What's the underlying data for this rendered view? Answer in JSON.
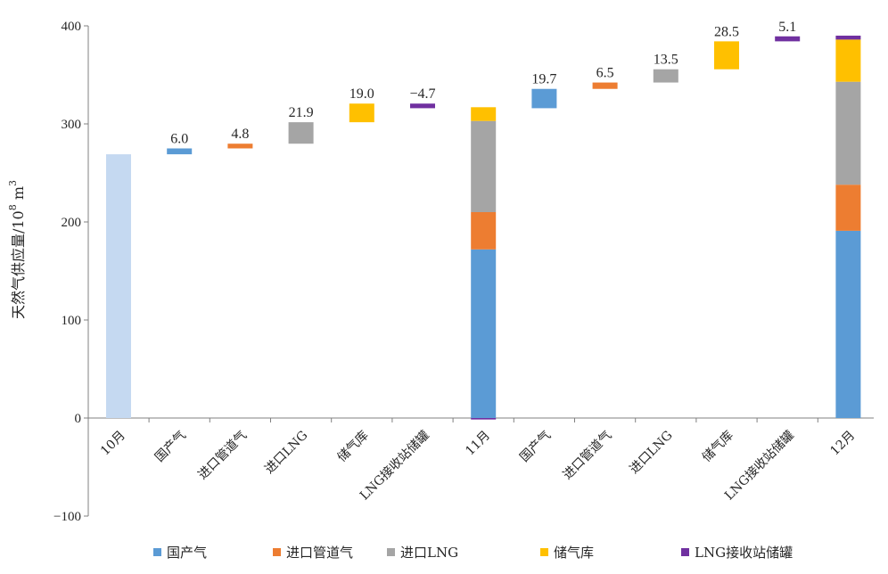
{
  "chart_data": {
    "type": "bar",
    "subtype": "waterfall-stacked",
    "ylabel": "天然气供应量/10⁸ m³",
    "ylabel_main": "天然气供应量/10",
    "ylabel_sup": "8",
    "ylabel_unit": " m",
    "ylabel_unit_sup": "3",
    "ylim": [
      -100,
      400
    ],
    "yticks": [
      -100,
      0,
      100,
      200,
      300,
      400
    ],
    "grid": false,
    "legend_position": "bottom",
    "categories": [
      "10月",
      "国产气",
      "进口管道气",
      "进口LNG",
      "储气库",
      "LNG接收站储罐",
      "11月",
      "国产气",
      "进口管道气",
      "进口LNG",
      "储气库",
      "LNG接收站储罐",
      "12月"
    ],
    "series": [
      {
        "name": "国产气",
        "color": "#5B9BD5"
      },
      {
        "name": "进口管道气",
        "color": "#ED7D31"
      },
      {
        "name": "进口LNG",
        "color": "#A5A5A5"
      },
      {
        "name": "储气库",
        "color": "#FFC000"
      },
      {
        "name": "LNG接收站储罐",
        "color": "#7030A0"
      }
    ],
    "bars": [
      {
        "category": "10月",
        "kind": "total",
        "color": "#C5D9F1",
        "value": 269
      },
      {
        "category": "国产气",
        "kind": "delta",
        "series": "国产气",
        "base": 269,
        "value": 6.0,
        "label": "6.0"
      },
      {
        "category": "进口管道气",
        "kind": "delta",
        "series": "进口管道气",
        "base": 275,
        "value": 4.8,
        "label": "4.8"
      },
      {
        "category": "进口LNG",
        "kind": "delta",
        "series": "进口LNG",
        "base": 279.8,
        "value": 21.9,
        "label": "21.9"
      },
      {
        "category": "储气库",
        "kind": "delta",
        "series": "储气库",
        "base": 301.7,
        "value": 19.0,
        "label": "19.0"
      },
      {
        "category": "LNG接收站储罐",
        "kind": "delta",
        "series": "LNG接收站储罐",
        "base": 320.7,
        "value": -4.7,
        "label": "−4.7"
      },
      {
        "category": "11月",
        "kind": "stack",
        "segments": [
          {
            "series": "LNG接收站储罐",
            "value": -1.5
          },
          {
            "series": "国产气",
            "value": 172
          },
          {
            "series": "进口管道气",
            "value": 38
          },
          {
            "series": "进口LNG",
            "value": 93
          },
          {
            "series": "储气库",
            "value": 14
          }
        ]
      },
      {
        "category": "国产气",
        "kind": "delta",
        "series": "国产气",
        "base": 316,
        "value": 19.7,
        "label": "19.7"
      },
      {
        "category": "进口管道气",
        "kind": "delta",
        "series": "进口管道气",
        "base": 335.7,
        "value": 6.5,
        "label": "6.5"
      },
      {
        "category": "进口LNG",
        "kind": "delta",
        "series": "进口LNG",
        "base": 342.2,
        "value": 13.5,
        "label": "13.5"
      },
      {
        "category": "储气库",
        "kind": "delta",
        "series": "储气库",
        "base": 355.7,
        "value": 28.5,
        "label": "28.5"
      },
      {
        "category": "LNG接收站储罐",
        "kind": "delta",
        "series": "LNG接收站储罐",
        "base": 384.2,
        "value": 5.1,
        "label": "5.1"
      },
      {
        "category": "12月",
        "kind": "stack",
        "segments": [
          {
            "series": "国产气",
            "value": 191
          },
          {
            "series": "进口管道气",
            "value": 47
          },
          {
            "series": "进口LNG",
            "value": 105
          },
          {
            "series": "储气库",
            "value": 43
          },
          {
            "series": "LNG接收站储罐",
            "value": 4
          }
        ]
      }
    ]
  }
}
